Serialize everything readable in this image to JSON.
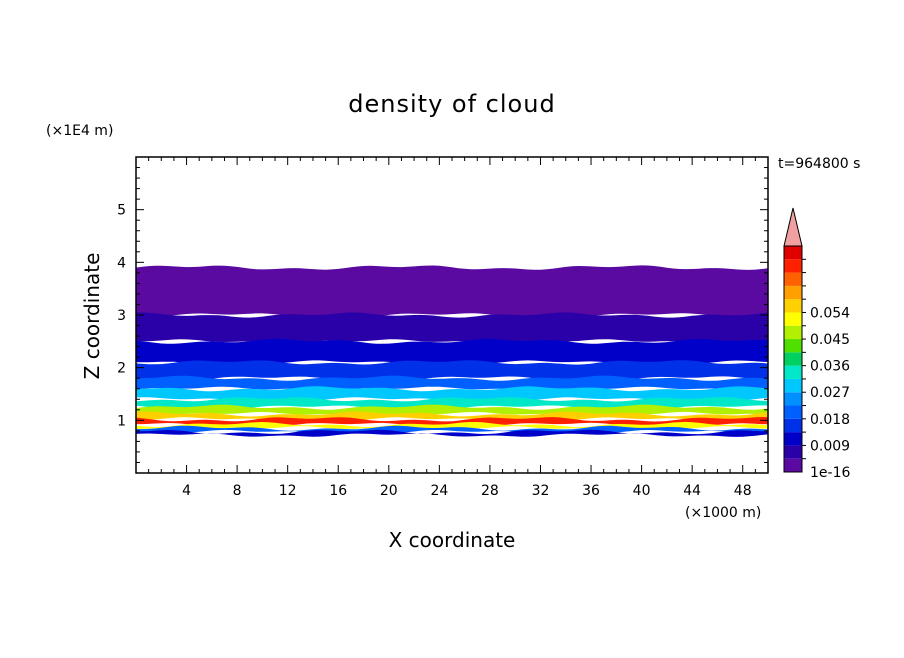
{
  "chart_data": {
    "type": "heatmap",
    "title": "density of cloud",
    "xlabel": "X coordinate",
    "ylabel": "Z coordinate",
    "x_unit": "(×1000 m)",
    "y_unit": "(×1E4 m)",
    "time_label": "t=964800 s",
    "xlim": [
      0,
      50
    ],
    "ylim": [
      0,
      6
    ],
    "x_ticks": [
      "4",
      "8",
      "12",
      "16",
      "20",
      "24",
      "28",
      "32",
      "36",
      "40",
      "44",
      "48"
    ],
    "x_tick_values": [
      4,
      8,
      12,
      16,
      20,
      24,
      28,
      32,
      36,
      40,
      44,
      48
    ],
    "y_ticks": [
      "1",
      "2",
      "3",
      "4",
      "5"
    ],
    "y_tick_values": [
      1,
      2,
      3,
      4,
      5
    ],
    "colorbar": {
      "labels": [
        "1e-16",
        "0.009",
        "0.018",
        "0.027",
        "0.036",
        "0.045",
        "0.054"
      ],
      "label_levels": [
        0,
        2,
        4,
        6,
        8,
        10,
        12
      ],
      "colors": [
        "#5a0aa0",
        "#2a00a8",
        "#0000c8",
        "#0030e8",
        "#0060ff",
        "#0090ff",
        "#00c8ff",
        "#00e8c8",
        "#00d060",
        "#50e000",
        "#b0f000",
        "#ffff00",
        "#ffd000",
        "#ffa000",
        "#ff6000",
        "#ff2000",
        "#e00000"
      ],
      "extend_color": "#f0a0a0"
    },
    "layers": [
      {
        "z": [
          3.0,
          3.9
        ],
        "level": 0
      },
      {
        "z": [
          2.5,
          3.0
        ],
        "level": 1
      },
      {
        "z": [
          2.1,
          2.5
        ],
        "level": 2
      },
      {
        "z": [
          1.8,
          2.1
        ],
        "level": 3
      },
      {
        "z": [
          1.6,
          1.8
        ],
        "level": 4
      },
      {
        "z": [
          1.4,
          1.6
        ],
        "level": 6
      },
      {
        "z": [
          1.25,
          1.4
        ],
        "level": 7
      },
      {
        "z": [
          1.12,
          1.25
        ],
        "level": 10
      },
      {
        "z": [
          1.02,
          1.12
        ],
        "level": 12
      },
      {
        "z": [
          0.92,
          1.02
        ],
        "level": 15
      },
      {
        "z": [
          0.85,
          0.92
        ],
        "level": 11
      },
      {
        "z": [
          0.78,
          0.85
        ],
        "level": 4
      },
      {
        "z": [
          0.72,
          0.78
        ],
        "level": 2
      }
    ]
  }
}
